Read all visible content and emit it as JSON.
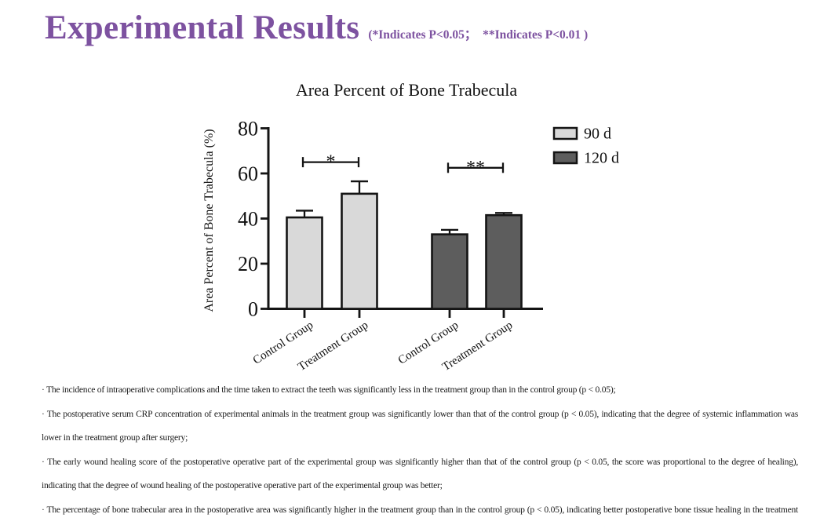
{
  "slide": {
    "title": "Experimental Results",
    "subtitle": "(*Indicates P<0.05；  **Indicates P<0.01 )",
    "accent_color": "#7d52a0"
  },
  "chart_data": {
    "type": "bar",
    "title": "Area Percent of Bone Trabecula",
    "xlabel": "",
    "ylabel": "Area Percent of Bone Trabecula (%)",
    "ylim": [
      0,
      80
    ],
    "yticks": [
      0,
      20,
      40,
      60,
      80
    ],
    "grid": false,
    "legend_position": "upper right",
    "categories": [
      "Control Group",
      "Treatment Group",
      "Control Group",
      "Treatment Group"
    ],
    "series": [
      {
        "name": "90 d",
        "color": "#d9d9d9"
      },
      {
        "name": "120 d",
        "color": "#5d5d5d"
      }
    ],
    "bars": [
      {
        "category": "Control Group",
        "series": "90 d",
        "value": 40.5,
        "error": 3.0
      },
      {
        "category": "Treatment Group",
        "series": "90 d",
        "value": 51.0,
        "error": 5.5
      },
      {
        "category": "Control Group",
        "series": "120 d",
        "value": 33.0,
        "error": 2.0
      },
      {
        "category": "Treatment Group",
        "series": "120 d",
        "value": 41.5,
        "error": 1.0
      }
    ],
    "annotations": [
      {
        "type": "significance",
        "label": "*",
        "between": [
          0,
          1
        ],
        "y": 65.0
      },
      {
        "type": "significance",
        "label": "**",
        "between": [
          2,
          3
        ],
        "y": 62.5
      }
    ]
  },
  "notes": {
    "items": [
      "· The incidence of intraoperative complications and the time taken to extract the teeth was significantly less in the treatment group than in the control group (p < 0.05);",
      "· The postoperative serum CRP concentration of experimental animals in the treatment group was significantly lower than that of the control group (p < 0.05), indicating that the degree of systemic inflammation was lower in the treatment group after surgery;",
      "· The early wound healing score of the postoperative operative part of the experimental group was significantly higher than that of the control group (p < 0.05, the score was proportional to the degree of healing), indicating that the degree of wound healing of the postoperative operative part of the experimental group was better;",
      "· The percentage of bone trabecular area in the postoperative area was significantly higher in the treatment group than in the control group (p < 0.05), indicating better postoperative bone tissue healing in the treatment group;"
    ]
  }
}
